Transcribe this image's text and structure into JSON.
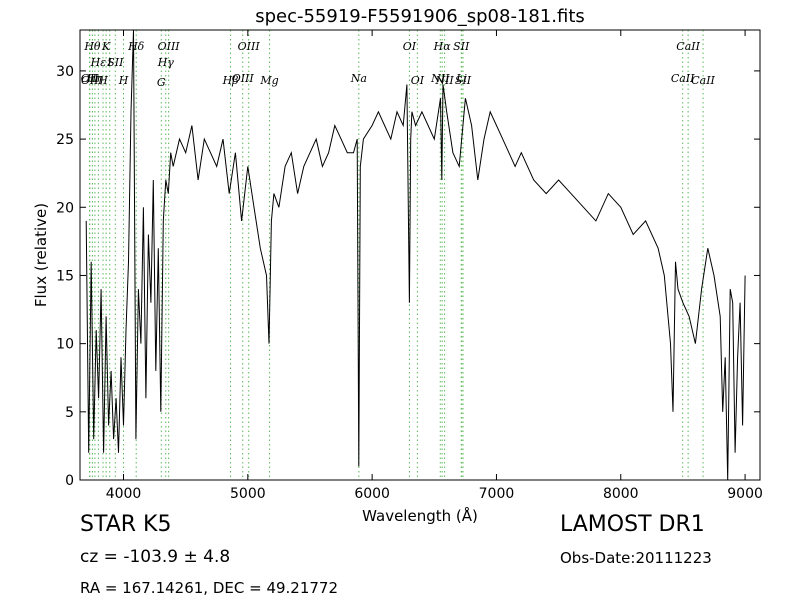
{
  "chart_data": {
    "type": "line",
    "title": "spec-55919-F5591906_sp08-181.fits",
    "xlabel": "Wavelength (Å)",
    "ylabel": "Flux (relative)",
    "xlim": [
      3650,
      9120
    ],
    "ylim": [
      0,
      33
    ],
    "xticks": [
      4000,
      5000,
      6000,
      7000,
      8000,
      9000
    ],
    "yticks": [
      0,
      5,
      10,
      15,
      20,
      25,
      30
    ],
    "grid": false,
    "line_color": "#000000",
    "marker_color": "#5cb85c",
    "series": [
      {
        "x": [
          3700,
          3720,
          3740,
          3760,
          3780,
          3800,
          3820,
          3840,
          3860,
          3880,
          3900,
          3920,
          3940,
          3960,
          3980,
          4000,
          4020,
          4040,
          4060,
          4080,
          4100,
          4120,
          4140,
          4160,
          4180,
          4200,
          4220,
          4240,
          4260,
          4280,
          4300,
          4320,
          4340,
          4360,
          4380,
          4400,
          4450,
          4500,
          4550,
          4600,
          4650,
          4700,
          4750,
          4800,
          4850,
          4900,
          4950,
          5000,
          5050,
          5100,
          5150,
          5170,
          5190,
          5210,
          5250,
          5300,
          5350,
          5400,
          5450,
          5500,
          5550,
          5600,
          5650,
          5700,
          5750,
          5800,
          5850,
          5880,
          5893,
          5905,
          5930,
          6000,
          6050,
          6100,
          6150,
          6200,
          6250,
          6280,
          6300,
          6310,
          6320,
          6350,
          6400,
          6450,
          6500,
          6550,
          6560,
          6570,
          6600,
          6650,
          6700,
          6750,
          6800,
          6850,
          6900,
          6950,
          7000,
          7050,
          7100,
          7150,
          7200,
          7300,
          7400,
          7500,
          7600,
          7700,
          7800,
          7900,
          8000,
          8100,
          8200,
          8300,
          8350,
          8400,
          8420,
          8440,
          8460,
          8500,
          8550,
          8600,
          8650,
          8700,
          8750,
          8800,
          8820,
          8840,
          8860,
          8880,
          8900,
          8920,
          8940,
          8960,
          8980,
          9000
        ],
        "y": [
          19,
          2,
          16,
          3,
          11,
          6,
          14,
          2,
          12,
          4,
          8,
          3,
          6,
          2,
          9,
          4,
          11,
          16,
          27,
          33,
          3,
          14,
          10,
          20,
          6,
          18,
          13,
          22,
          8,
          17,
          5,
          19,
          22,
          21,
          24,
          23,
          25,
          24,
          26,
          22,
          25,
          24,
          23,
          25,
          21,
          24,
          19,
          23,
          20,
          17,
          15,
          10,
          19,
          21,
          20,
          23,
          24,
          21,
          23,
          24,
          25,
          23,
          24,
          26,
          25,
          24,
          24,
          25,
          1,
          23,
          25,
          26,
          27,
          26,
          25,
          27,
          26,
          29,
          13,
          25,
          27,
          26,
          27,
          26,
          25,
          28,
          22,
          29,
          27,
          24,
          23,
          28,
          26,
          22,
          25,
          27,
          26,
          25,
          24,
          23,
          24,
          22,
          21,
          22,
          21,
          20,
          19,
          21,
          20,
          18,
          19,
          17,
          15,
          10,
          5,
          16,
          14,
          13,
          12,
          10,
          14,
          17,
          15,
          12,
          5,
          9,
          0,
          14,
          13,
          2,
          9,
          13,
          4,
          15
        ],
        "values": [
          19,
          2,
          16,
          3,
          11,
          6,
          14,
          2,
          12,
          4,
          8,
          3,
          6,
          2,
          9,
          4,
          11,
          16,
          27,
          33,
          3,
          14,
          10,
          20,
          6,
          18,
          13,
          22,
          8,
          17,
          5,
          19,
          22,
          21,
          24,
          23,
          25,
          24,
          26,
          22,
          25,
          24,
          23,
          25,
          21,
          24,
          19,
          23,
          20,
          17,
          15,
          10,
          19,
          21,
          20,
          23,
          24,
          21,
          23,
          24,
          25,
          23,
          24,
          26,
          25,
          24,
          24,
          25,
          1,
          23,
          25,
          26,
          27,
          26,
          25,
          27,
          26,
          29,
          13,
          25,
          27,
          26,
          27,
          26,
          25,
          28,
          22,
          29,
          27,
          24,
          23,
          28,
          26,
          22,
          25,
          27,
          26,
          25,
          24,
          23,
          24,
          22,
          21,
          22,
          21,
          20,
          19,
          21,
          20,
          18,
          19,
          17,
          15,
          10,
          5,
          16,
          14,
          13,
          12,
          10,
          14,
          17,
          15,
          12,
          5,
          9,
          0,
          14,
          13,
          2,
          9,
          13,
          4,
          15
        ]
      }
    ],
    "line_markers": [
      {
        "x": 3727,
        "label": "OII",
        "row": 2
      },
      {
        "x": 3729,
        "label": "OII",
        "row": 3
      },
      {
        "x": 3750,
        "label": "Hθ",
        "row": 0
      },
      {
        "x": 3770,
        "label": "Hη",
        "row": 2
      },
      {
        "x": 3798,
        "label": "Hε",
        "row": 1
      },
      {
        "x": 3835,
        "label": "H",
        "row": 3
      },
      {
        "x": 3860,
        "label": "K",
        "row": 0
      },
      {
        "x": 3889,
        "label": "I",
        "row": 1
      },
      {
        "x": 3934,
        "label": "SII",
        "row": 1
      },
      {
        "x": 4000,
        "label": "H",
        "row": 3
      },
      {
        "x": 4102,
        "label": "Hδ",
        "row": 0
      },
      {
        "x": 4304,
        "label": "G",
        "row": 4
      },
      {
        "x": 4340,
        "label": "Hγ",
        "row": 1
      },
      {
        "x": 4363,
        "label": "OIII",
        "row": 0
      },
      {
        "x": 4861,
        "label": "Hβ",
        "row": 3
      },
      {
        "x": 4959,
        "label": "OIII",
        "row": 2
      },
      {
        "x": 5007,
        "label": "OIII",
        "row": 0
      },
      {
        "x": 5175,
        "label": "Mg",
        "row": 3
      },
      {
        "x": 5893,
        "label": "Na",
        "row": 2
      },
      {
        "x": 6300,
        "label": "OI",
        "row": 0
      },
      {
        "x": 6364,
        "label": "OI",
        "row": 3
      },
      {
        "x": 6548,
        "label": "NII",
        "row": 2
      },
      {
        "x": 6563,
        "label": "Hα",
        "row": 0
      },
      {
        "x": 6583,
        "label": "NII",
        "row": 3
      },
      {
        "x": 6717,
        "label": "SII",
        "row": 0
      },
      {
        "x": 6720,
        "label": "Li",
        "row": 2
      },
      {
        "x": 6731,
        "label": "SII",
        "row": 3
      },
      {
        "x": 8498,
        "label": "CaII",
        "row": 2
      },
      {
        "x": 8542,
        "label": "CaII",
        "row": 0
      },
      {
        "x": 8662,
        "label": "CaII",
        "row": 3
      }
    ]
  },
  "info": {
    "class_line": "STAR   K5",
    "survey": "LAMOST DR1",
    "redshift": "cz = -103.9  ± 4.8",
    "obs_date": "Obs-Date:20111223",
    "coords": "RA = 167.14261, DEC = 49.21772"
  }
}
